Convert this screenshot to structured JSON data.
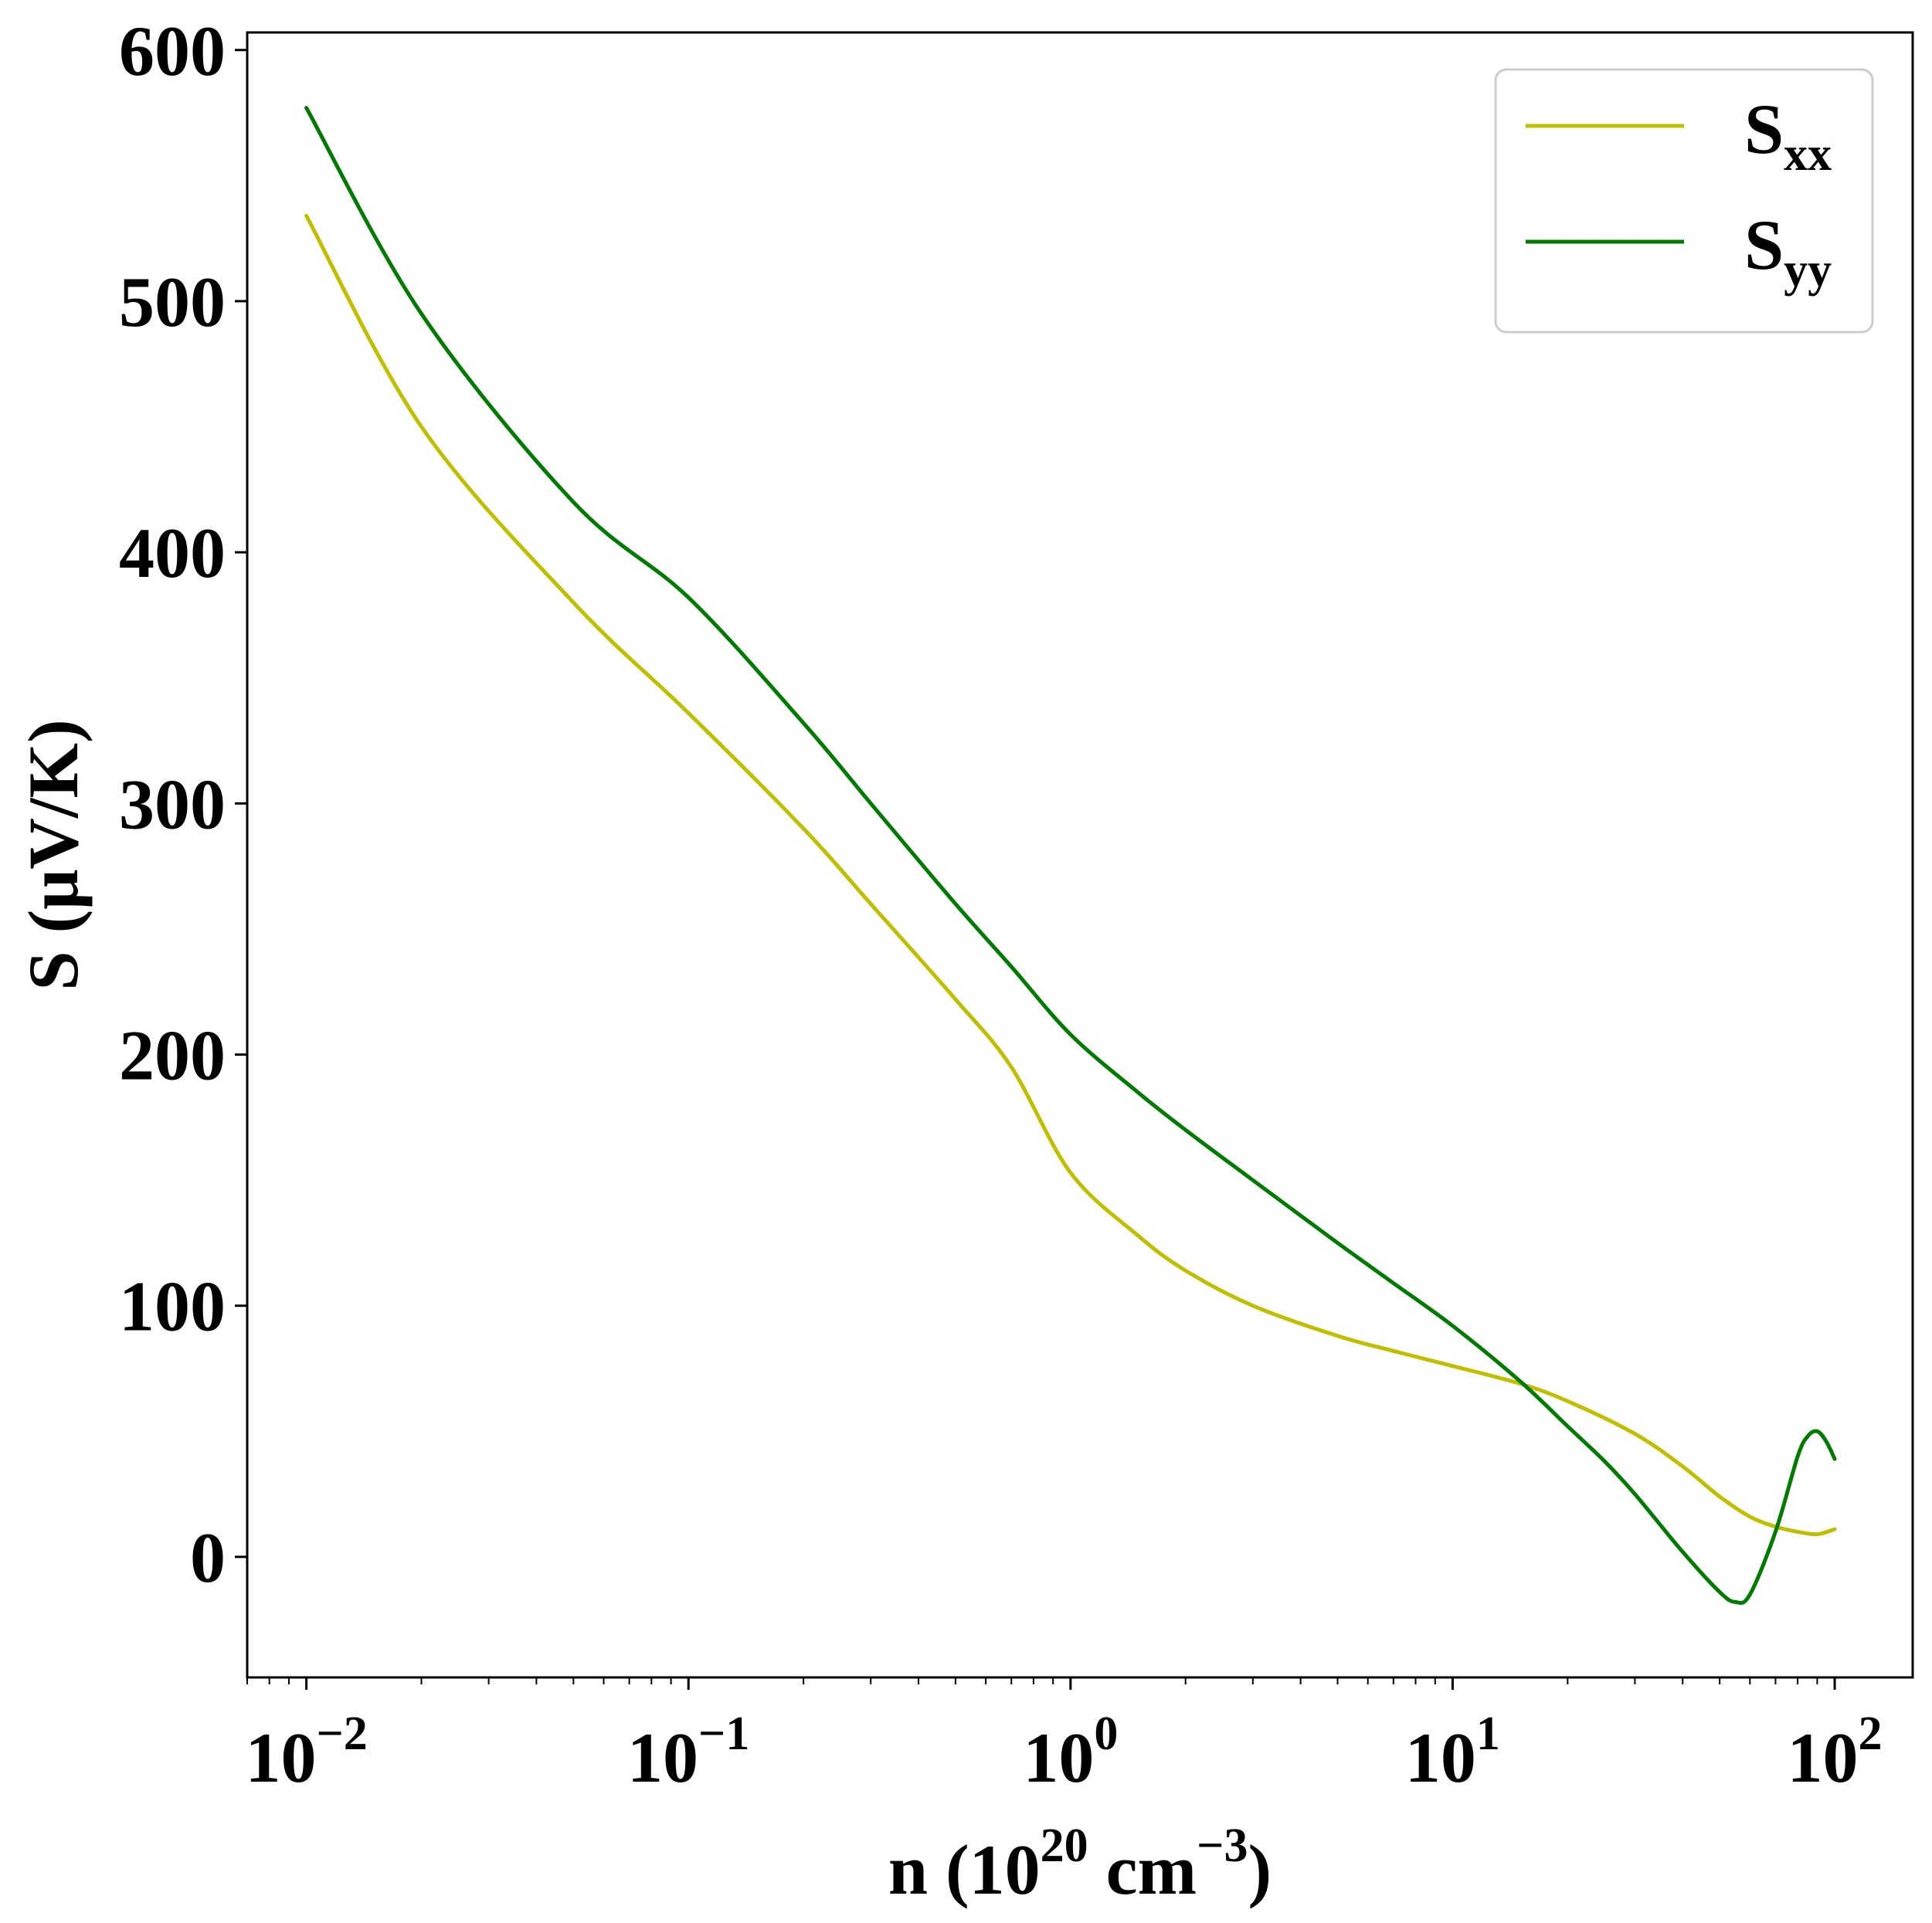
{
  "chart_data": {
    "type": "line",
    "xscale": "log",
    "xlim": [
      0.007,
      160
    ],
    "ylim": [
      -48,
      607
    ],
    "xlabel": {
      "text": "n (10",
      "sup": "20",
      "unit": " cm",
      "unit_sup": "−3",
      "close": ")"
    },
    "ylabel": "S (μV/K)",
    "xticks": [
      {
        "value": 0.01,
        "base": "10",
        "exp": "−2"
      },
      {
        "value": 0.1,
        "base": "10",
        "exp": "−1"
      },
      {
        "value": 1,
        "base": "10",
        "exp": "0"
      },
      {
        "value": 10,
        "base": "10",
        "exp": "1"
      },
      {
        "value": 100,
        "base": "10",
        "exp": "2"
      }
    ],
    "yticks": [
      0,
      100,
      200,
      300,
      400,
      500,
      600
    ],
    "legend_position": "top-right",
    "series": [
      {
        "name": "S",
        "sub": "xx",
        "color": "#bfbf00",
        "points": [
          [
            0.01,
            534
          ],
          [
            0.02,
            450
          ],
          [
            0.05,
            380
          ],
          [
            0.1,
            336
          ],
          [
            0.2,
            290
          ],
          [
            0.3,
            260
          ],
          [
            0.5,
            222
          ],
          [
            0.7,
            195
          ],
          [
            1.0,
            153
          ],
          [
            1.5,
            128
          ],
          [
            2.0,
            114
          ],
          [
            3.0,
            100
          ],
          [
            5.0,
            88
          ],
          [
            7.0,
            82
          ],
          [
            10.0,
            76
          ],
          [
            15.0,
            69
          ],
          [
            20.0,
            62
          ],
          [
            30.0,
            49
          ],
          [
            40.0,
            36
          ],
          [
            50.0,
            24
          ],
          [
            60.0,
            16
          ],
          [
            70.0,
            12
          ],
          [
            80.0,
            10
          ],
          [
            90.0,
            9
          ],
          [
            100.0,
            11
          ]
        ]
      },
      {
        "name": "S",
        "sub": "yy",
        "color": "#007a00",
        "points": [
          [
            0.01,
            577
          ],
          [
            0.02,
            495
          ],
          [
            0.05,
            420
          ],
          [
            0.1,
            382
          ],
          [
            0.2,
            332
          ],
          [
            0.3,
            300
          ],
          [
            0.5,
            260
          ],
          [
            0.7,
            235
          ],
          [
            1.0,
            208
          ],
          [
            1.5,
            185
          ],
          [
            2.0,
            170
          ],
          [
            3.0,
            150
          ],
          [
            5.0,
            125
          ],
          [
            7.0,
            109
          ],
          [
            10.0,
            92
          ],
          [
            15.0,
            70
          ],
          [
            20.0,
            52
          ],
          [
            25.0,
            38
          ],
          [
            30.0,
            25
          ],
          [
            40.0,
            2
          ],
          [
            50.0,
            -14
          ],
          [
            55.0,
            -18
          ],
          [
            60.0,
            -15
          ],
          [
            70.0,
            10
          ],
          [
            80.0,
            40
          ],
          [
            85.0,
            48
          ],
          [
            90.0,
            50
          ],
          [
            95.0,
            46
          ],
          [
            100.0,
            39
          ]
        ]
      }
    ]
  }
}
